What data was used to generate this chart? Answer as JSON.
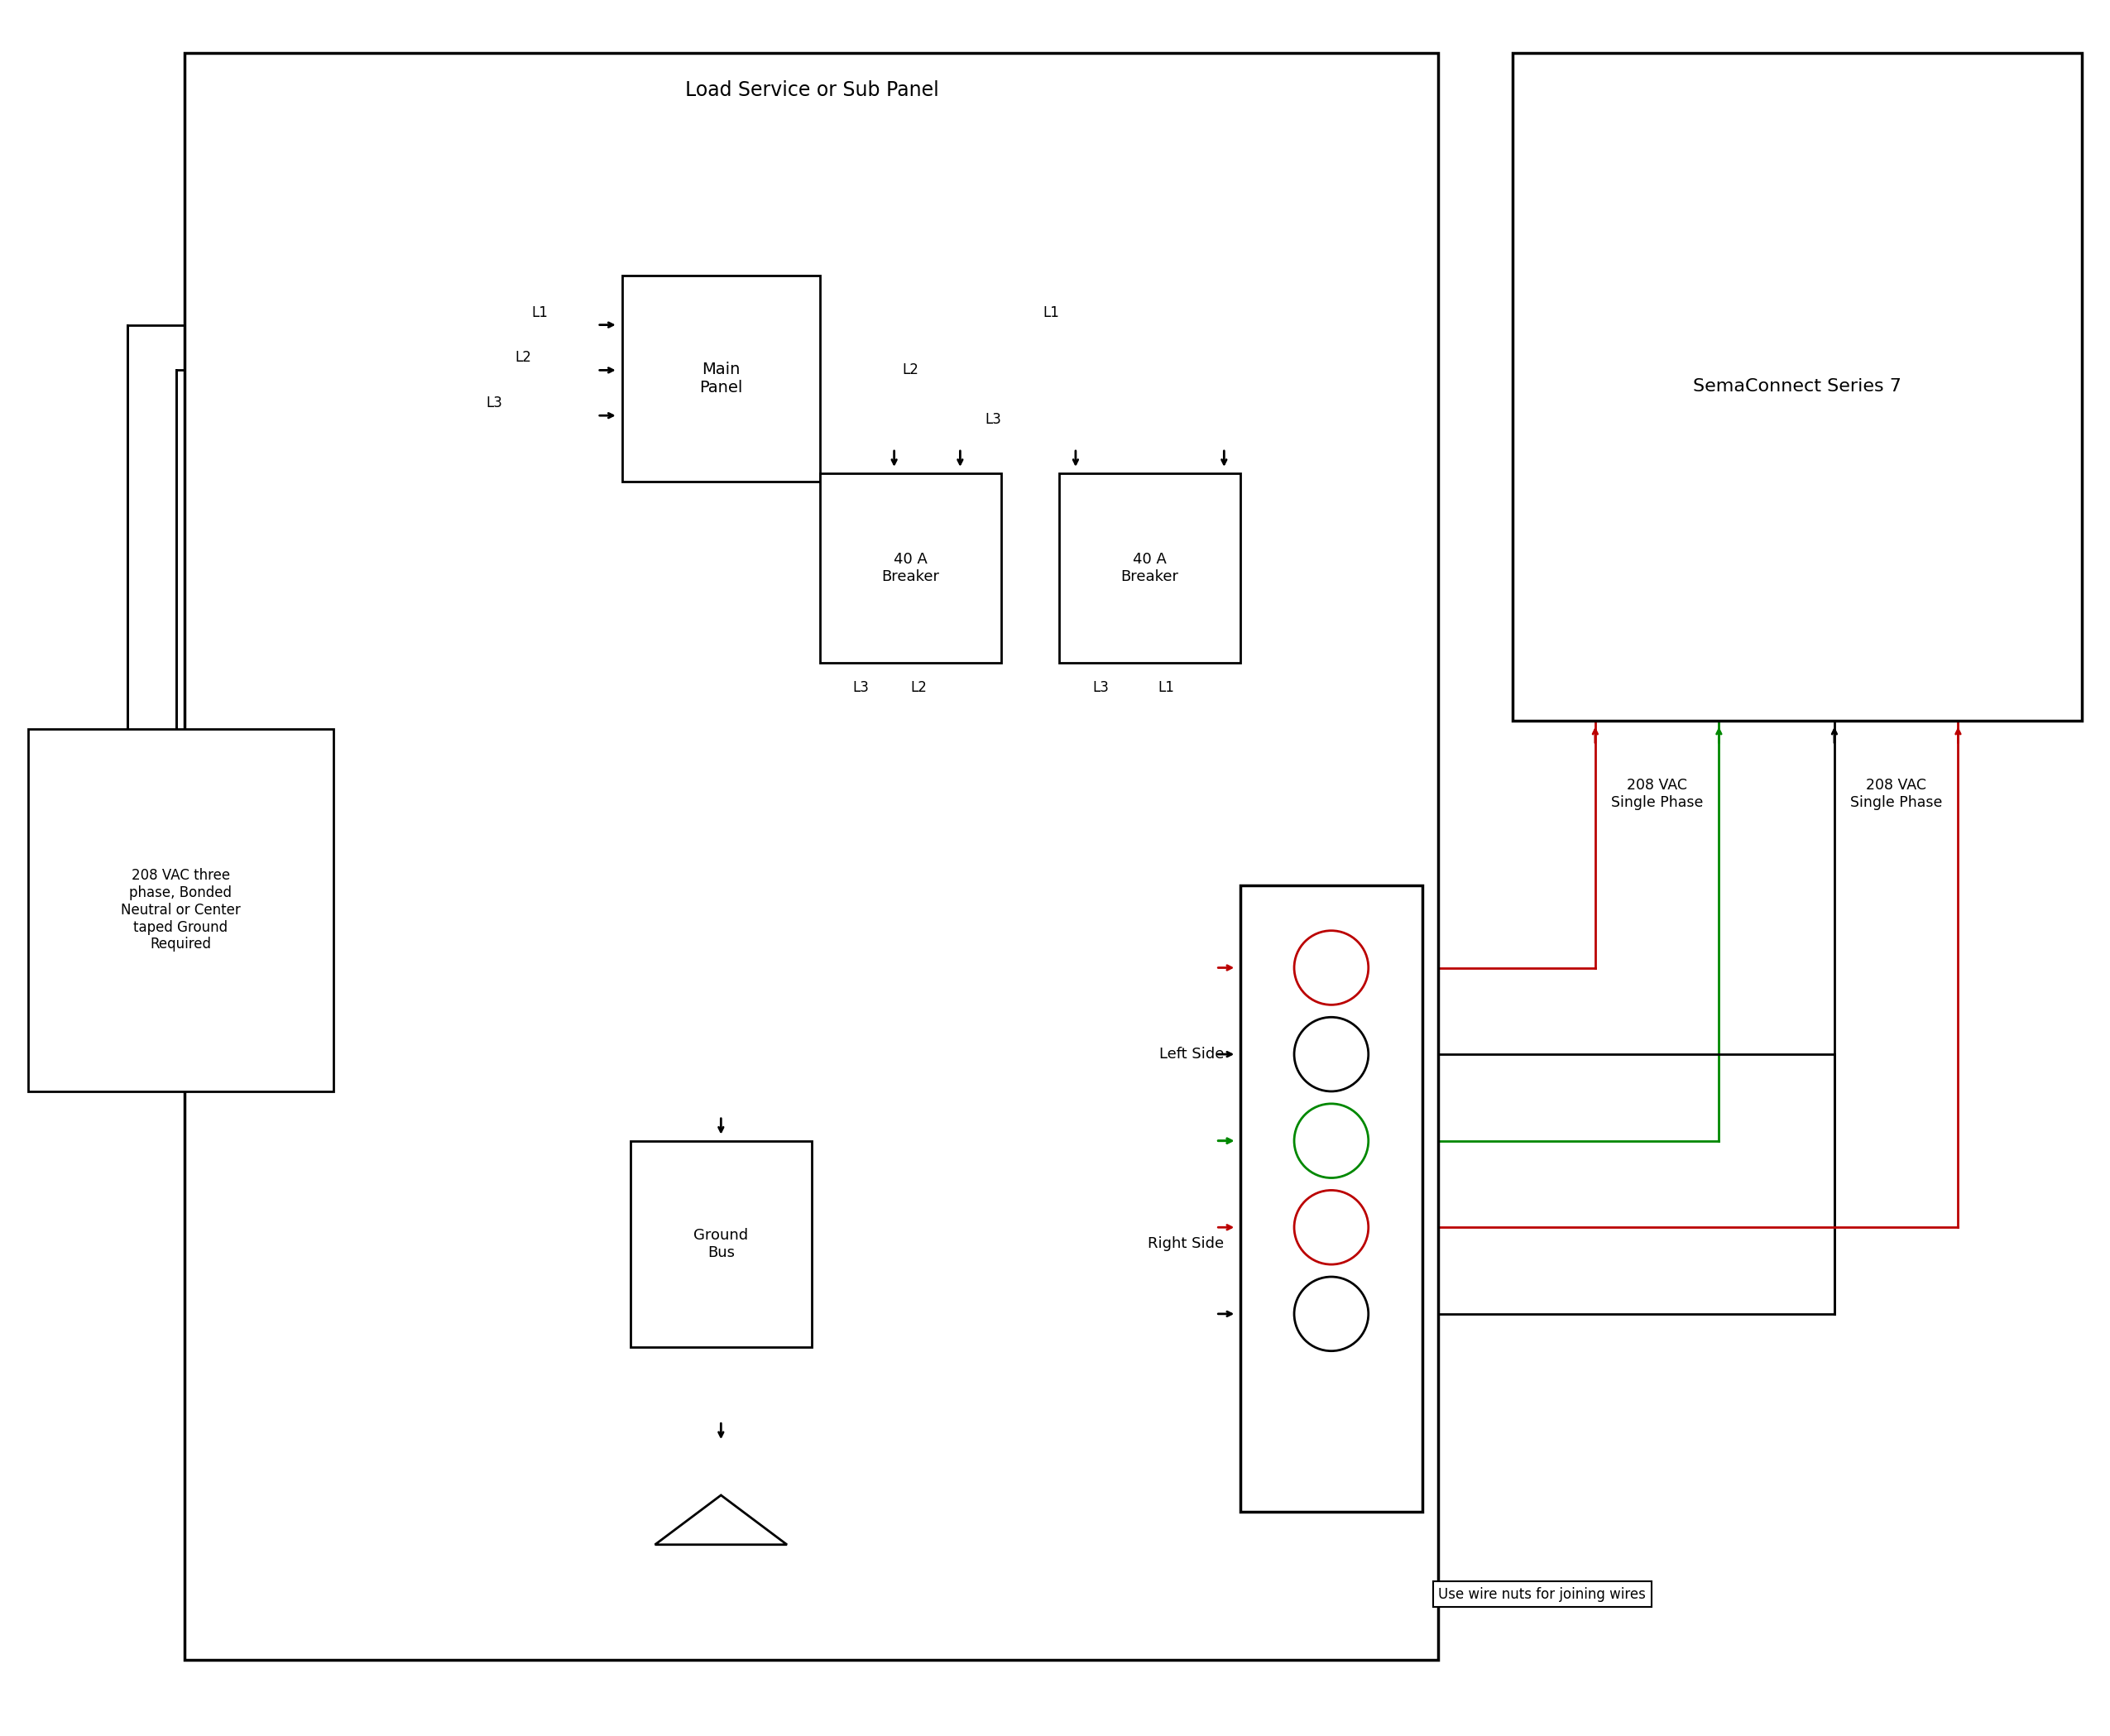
{
  "bg_color": "#ffffff",
  "line_color": "#000000",
  "red_color": "#bb0000",
  "green_color": "#008800",
  "fig_width": 25.5,
  "fig_height": 20.98,
  "title_panel": "Load Service or Sub Panel",
  "title_sema": "SemaConnect Series 7",
  "label_208vac": "208 VAC three\nphase, Bonded\nNeutral or Center\ntaped Ground\nRequired",
  "label_main_panel": "Main\nPanel",
  "label_breaker1": "40 A\nBreaker",
  "label_breaker2": "40 A\nBreaker",
  "label_ground_bus": "Ground\nBus",
  "label_left_side": "Left Side",
  "label_right_side": "Right Side",
  "label_208_single1": "208 VAC\nSingle Phase",
  "label_208_single2": "208 VAC\nSingle Phase",
  "label_wire_nuts": "Use wire nuts for joining wires",
  "label_L1_in": "L1",
  "label_L2_in": "L2",
  "label_L3_in": "L3",
  "label_L1_out": "L1",
  "label_L2_out": "L2",
  "label_L3_out": "L3",
  "label_br1_L3": "L3",
  "label_br1_L2": "L2",
  "label_br2_L3": "L3",
  "label_br2_L1": "L1"
}
